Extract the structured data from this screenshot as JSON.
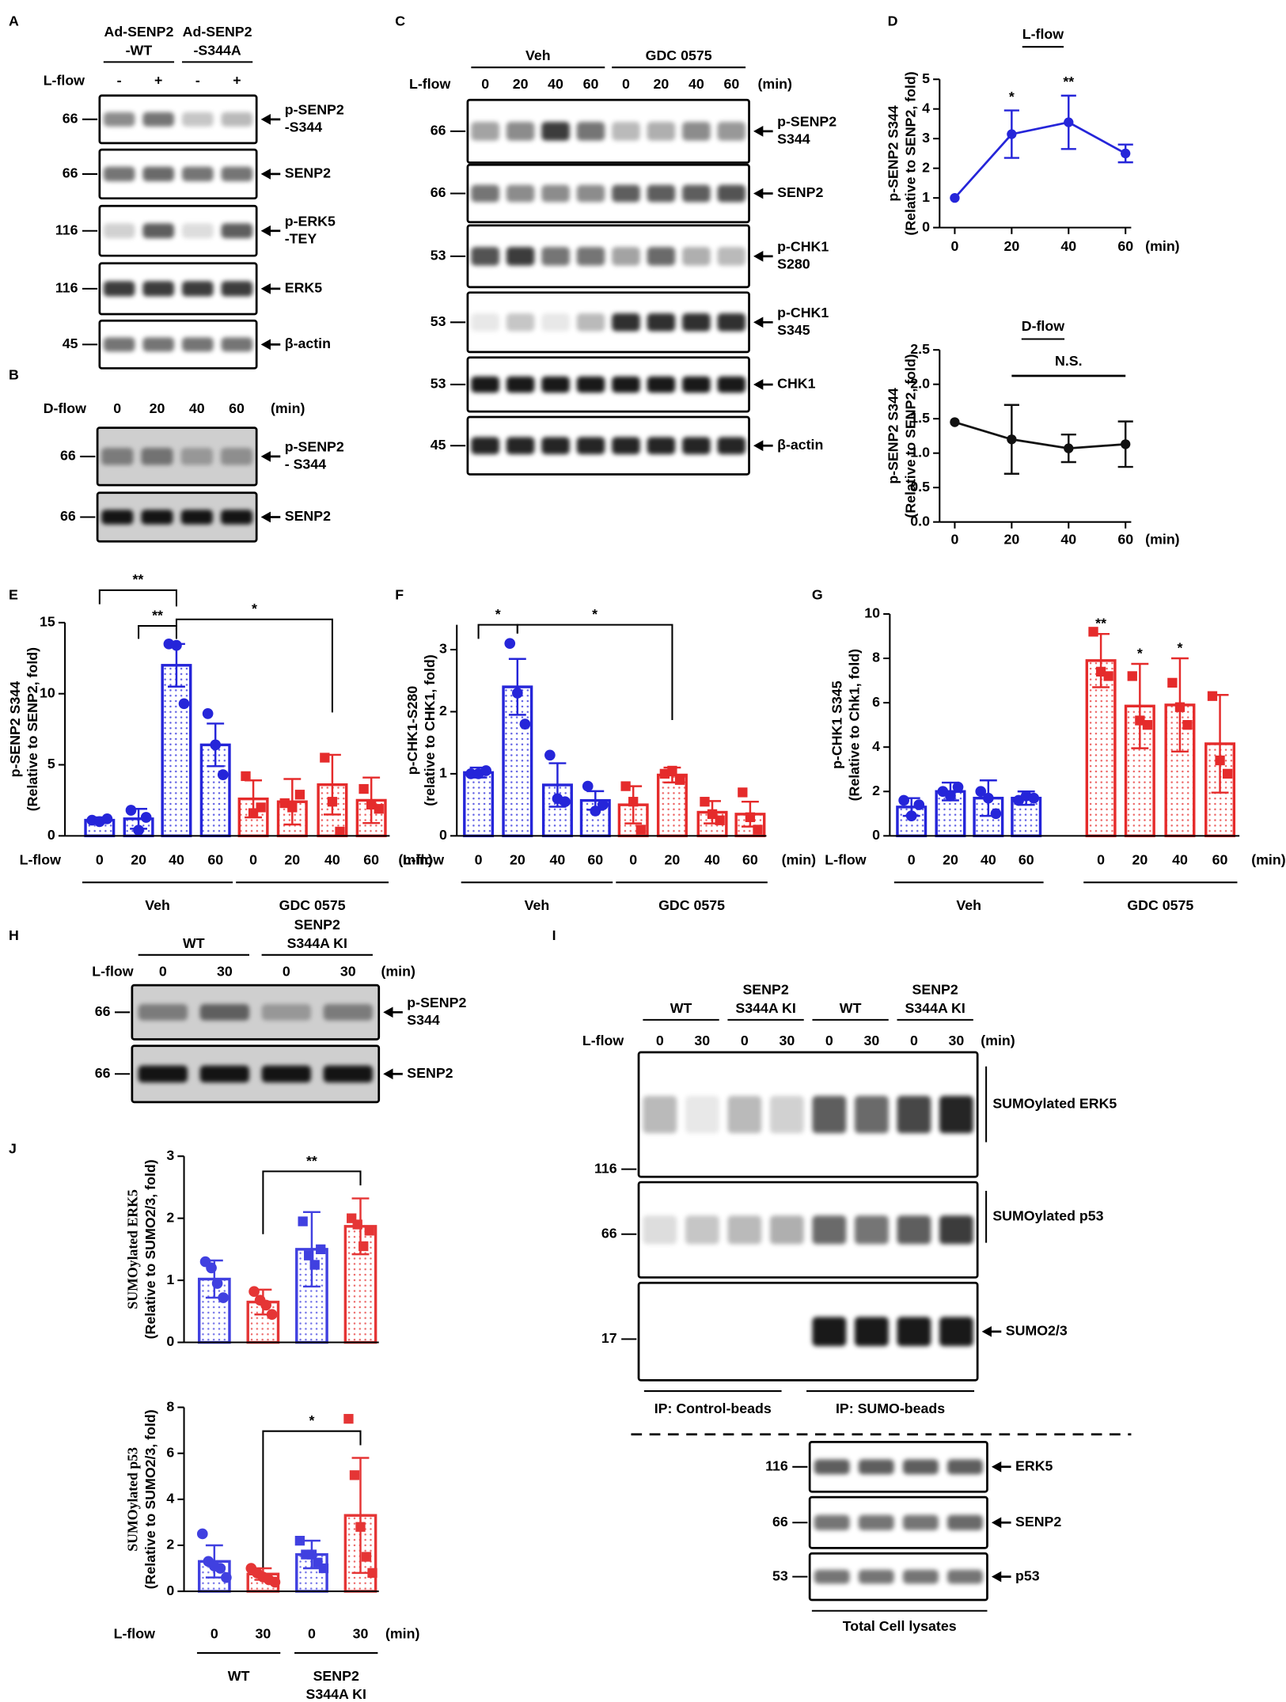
{
  "panel_labels": [
    "A",
    "B",
    "C",
    "D",
    "E",
    "F",
    "G",
    "H",
    "I",
    "J"
  ],
  "blots": {
    "A": {
      "groups": [
        [
          "Ad-SENP2",
          "-WT"
        ],
        [
          "Ad-SENP2",
          "-S344A"
        ]
      ],
      "condition": "L-flow",
      "lanes": [
        "-",
        "+",
        "-",
        "+"
      ],
      "rows": [
        {
          "mw": 66,
          "label": [
            "p-SENP2",
            "-S344"
          ]
        },
        {
          "mw": 66,
          "label": [
            "SENP2"
          ]
        },
        {
          "mw": 116,
          "label": [
            "p-ERK5",
            "-TEY"
          ]
        },
        {
          "mw": 116,
          "label": [
            "ERK5"
          ]
        },
        {
          "mw": 45,
          "label": [
            "β-actin"
          ]
        }
      ]
    },
    "B": {
      "condition": "D-flow",
      "lanes": [
        0,
        20,
        40,
        60
      ],
      "unit": "(min)",
      "rows": [
        {
          "mw": 66,
          "label": [
            "p-SENP2",
            "- S344"
          ]
        },
        {
          "mw": 66,
          "label": [
            "SENP2"
          ]
        }
      ]
    },
    "C": {
      "groups": [
        [
          "Veh"
        ],
        [
          "GDC 0575"
        ]
      ],
      "condition": "L-flow",
      "lanes": [
        0,
        20,
        40,
        60,
        0,
        20,
        40,
        60
      ],
      "unit": "(min)",
      "rows": [
        {
          "mw": 66,
          "label": [
            "p-SENP2",
            "S344"
          ]
        },
        {
          "mw": 66,
          "label": [
            "SENP2"
          ]
        },
        {
          "mw": 53,
          "label": [
            "p-CHK1",
            "S280"
          ]
        },
        {
          "mw": 53,
          "label": [
            "p-CHK1",
            "S345"
          ]
        },
        {
          "mw": 53,
          "label": [
            "CHK1"
          ]
        },
        {
          "mw": 45,
          "label": [
            "β-actin"
          ]
        }
      ]
    },
    "H": {
      "groups": [
        [
          "WT"
        ],
        [
          "SENP2",
          "S344A KI"
        ]
      ],
      "condition": "L-flow",
      "lanes": [
        0,
        30,
        0,
        30
      ],
      "unit": "(min)",
      "rows": [
        {
          "mw": 66,
          "label": [
            "p-SENP2",
            "S344"
          ]
        },
        {
          "mw": 66,
          "label": [
            "SENP2"
          ]
        }
      ]
    },
    "I": {
      "groups": [
        [
          "WT"
        ],
        [
          "SENP2",
          "S344A KI"
        ],
        [
          "WT"
        ],
        [
          "SENP2",
          "S344A KI"
        ]
      ],
      "condition": "L-flow",
      "lanes": [
        0,
        30,
        0,
        30,
        0,
        30,
        0,
        30
      ],
      "unit": "(min)",
      "rows": [
        {
          "mw": 116,
          "label": [
            "SUMOylated ERK5"
          ]
        },
        {
          "mw": 66,
          "label": [
            "SUMOylated p53"
          ]
        },
        {
          "mw": 17,
          "label": [
            "SUMO2/3"
          ]
        }
      ],
      "ip_labels": [
        "IP: Control-beads",
        "IP: SUMO-beads"
      ],
      "lysate_rows": [
        {
          "mw": 116,
          "label": [
            "ERK5"
          ]
        },
        {
          "mw": 66,
          "label": [
            "SENP2"
          ]
        },
        {
          "mw": 53,
          "label": [
            "p53"
          ]
        }
      ],
      "lysate_label": "Total Cell lysates"
    }
  },
  "chart_data": [
    {
      "type": "line",
      "title": "L-flow",
      "ylabel": [
        "p-SENP2 S344",
        "(Relative to SENP2, fold)"
      ],
      "x": [
        0,
        20,
        40,
        60
      ],
      "xlim": [
        0,
        62
      ],
      "xticks": [
        0,
        20,
        40,
        60
      ],
      "xunit": "(min)",
      "ylim": [
        0,
        5
      ],
      "yticks": [
        0,
        1,
        2,
        3,
        4,
        5
      ],
      "series": [
        {
          "color": "#2525d9",
          "values": [
            1,
            3.15,
            3.55,
            2.5
          ],
          "errors": [
            null,
            0.8,
            0.9,
            0.3
          ]
        }
      ],
      "annotations": [
        "*",
        "**"
      ]
    },
    {
      "type": "line",
      "title": "D-flow",
      "ylabel": [
        "p-SENP2 S344",
        "(Relative to SENP2, fold)"
      ],
      "x": [
        0,
        20,
        40,
        60
      ],
      "xlim": [
        0,
        62
      ],
      "xticks": [
        0,
        20,
        40,
        60
      ],
      "xunit": "(min)",
      "ylim": [
        0,
        2.5
      ],
      "yticks": [
        {
          "value": 0,
          "label": "0.0"
        },
        0.5,
        {
          "value": 1,
          "label": "1.0"
        },
        1.5,
        {
          "value": 2,
          "label": "2.0"
        },
        2.5
      ],
      "series": [
        {
          "color": "#111111",
          "values": [
            1.45,
            1.2,
            1.07,
            1.13
          ],
          "errors": [
            null,
            0.5,
            0.2,
            0.33
          ]
        }
      ],
      "annotations": [
        "N.S."
      ]
    },
    {
      "type": "bar",
      "ylabel": [
        "p-SENP2 S344",
        "(Relative to  SENP2, fold)"
      ],
      "xlabel": "L-flow",
      "xunit": "(min)",
      "categories": [
        "0",
        "20",
        "40",
        "60"
      ],
      "ylim": [
        0,
        15
      ],
      "yticks": [
        0,
        5,
        10,
        15
      ],
      "series": [
        {
          "name": [
            "Veh"
          ],
          "color": "#2525d9",
          "marker": "circle",
          "values": [
            1.1,
            1.2,
            12,
            6.4
          ],
          "errors": [
            0.2,
            0.7,
            1.5,
            1.5
          ],
          "points": [
            [
              1.1,
              1.0,
              1.2
            ],
            [
              1.8,
              0.4,
              1.3
            ],
            [
              13.5,
              13.4,
              9.3
            ],
            [
              8.6,
              6.4,
              4.3
            ]
          ]
        },
        {
          "name": [
            "GDC 0575"
          ],
          "color": "#e52b2b",
          "marker": "square",
          "values": [
            2.6,
            2.4,
            3.6,
            2.5
          ],
          "errors": [
            1.3,
            1.6,
            2.1,
            1.6
          ],
          "points": [
            [
              4.2,
              1.6,
              2.0
            ],
            [
              2.3,
              2.0,
              2.9
            ],
            [
              5.5,
              2.4,
              0.3
            ],
            [
              3.3,
              2.2,
              1.9
            ]
          ]
        }
      ],
      "annotations": [
        "**",
        "**",
        "*"
      ]
    },
    {
      "type": "bar",
      "ylabel": [
        "p-CHK1-S280",
        "(relative to CHK1, fold)"
      ],
      "xlabel": "L-flow",
      "xunit": "(min)",
      "categories": [
        "0",
        "20",
        "40",
        "60"
      ],
      "ylim": [
        0,
        3.4
      ],
      "yticks": [
        0,
        1,
        2,
        3
      ],
      "series": [
        {
          "name": [
            "Veh"
          ],
          "color": "#2525d9",
          "marker": "circle",
          "values": [
            1.02,
            2.4,
            0.82,
            0.57
          ],
          "errors": [
            0.08,
            0.45,
            0.35,
            0.15
          ],
          "points": [
            [
              1.0,
              1.0,
              1.05
            ],
            [
              3.1,
              2.3,
              1.8
            ],
            [
              1.3,
              0.6,
              0.55
            ],
            [
              0.8,
              0.4,
              0.5
            ]
          ]
        },
        {
          "name": [
            "GDC 0575"
          ],
          "color": "#e52b2b",
          "marker": "square",
          "values": [
            0.5,
            0.98,
            0.38,
            0.35
          ],
          "errors": [
            0.3,
            0.12,
            0.18,
            0.2
          ],
          "points": [
            [
              0.8,
              0.55,
              0.1
            ],
            [
              1.0,
              1.05,
              0.9
            ],
            [
              0.55,
              0.35,
              0.25
            ],
            [
              0.7,
              0.3,
              0.1
            ]
          ]
        }
      ],
      "annotations": [
        "*",
        "*"
      ]
    },
    {
      "type": "bar",
      "ylabel": [
        "p-CHK1 S345",
        "(Relative to Chk1, fold)"
      ],
      "xlabel": "L-flow",
      "xunit": "(min)",
      "categories": [
        "0",
        "20",
        "40",
        "60"
      ],
      "ylim": [
        0,
        10
      ],
      "yticks": [
        0,
        2,
        4,
        6,
        8,
        10
      ],
      "series": [
        {
          "name": [
            "Veh"
          ],
          "color": "#2525d9",
          "marker": "circle",
          "values": [
            1.3,
            2.0,
            1.7,
            1.7
          ],
          "errors": [
            0.4,
            0.4,
            0.8,
            0.3
          ],
          "points": [
            [
              1.6,
              0.9,
              1.4
            ],
            [
              2.0,
              1.8,
              2.2
            ],
            [
              2.0,
              1.7,
              1.0
            ],
            [
              1.6,
              1.8,
              1.7
            ]
          ]
        },
        {
          "name": [
            "GDC 0575"
          ],
          "color": "#e52b2b",
          "marker": "square",
          "values": [
            7.9,
            5.85,
            5.9,
            4.15
          ],
          "errors": [
            1.2,
            1.9,
            2.1,
            2.2
          ],
          "points": [
            [
              9.2,
              7.4,
              7.2
            ],
            [
              7.2,
              5.2,
              5.0
            ],
            [
              6.9,
              5.8,
              5.0
            ],
            [
              6.3,
              3.4,
              2.8
            ]
          ]
        }
      ],
      "annotations": [
        "**",
        "*",
        "*"
      ]
    },
    {
      "type": "bar",
      "ylabel": [
        "SUMOylated ERK5",
        "(Relative to SUMO2/3, fold)"
      ],
      "ylim": [
        0,
        3
      ],
      "yticks": [
        0,
        1,
        2,
        3
      ],
      "series": [
        {
          "colors": [
            "#4040e0",
            "#e53535"
          ],
          "marker": "circle",
          "values": [
            1.02,
            0.65
          ],
          "errors": [
            0.3,
            0.2
          ],
          "points": [
            [
              1.3,
              1.2,
              0.95,
              0.72
            ],
            [
              0.82,
              0.68,
              0.6,
              0.45
            ]
          ]
        },
        {
          "colors": [
            "#4040e0",
            "#e53535"
          ],
          "marker": "square",
          "values": [
            1.5,
            1.87
          ],
          "errors": [
            0.6,
            0.45
          ],
          "points": [
            [
              1.95,
              1.4,
              1.25,
              1.5
            ],
            [
              2.0,
              1.9,
              1.55,
              1.8
            ]
          ]
        }
      ],
      "annotations": [
        "**"
      ]
    },
    {
      "type": "bar",
      "ylabel": [
        "SUMOylated p53",
        "(Relative to SUMO2/3, fold)"
      ],
      "xlabel": "L-flow",
      "xunit": "(min)",
      "categories": [
        "0",
        "30"
      ],
      "ylim": [
        0,
        8
      ],
      "yticks": [
        0,
        2,
        4,
        6,
        8
      ],
      "series": [
        {
          "name": [
            "WT"
          ],
          "colors": [
            "#4040e0",
            "#e53535"
          ],
          "marker": "circle",
          "values": [
            1.3,
            0.75
          ],
          "errors": [
            0.7,
            0.25
          ],
          "points": [
            [
              2.5,
              1.3,
              1.1,
              1.0,
              0.6
            ],
            [
              1.0,
              0.8,
              0.62,
              0.5,
              0.4
            ]
          ]
        },
        {
          "name": [
            "SENP2",
            "S344A KI"
          ],
          "colors": [
            "#4040e0",
            "#e53535"
          ],
          "marker": "square",
          "values": [
            1.6,
            3.3
          ],
          "errors": [
            0.6,
            2.5
          ],
          "points": [
            [
              2.2,
              1.6,
              1.6,
              1.25,
              1.0
            ],
            [
              7.5,
              5.05,
              2.8,
              1.5,
              0.8
            ]
          ]
        }
      ],
      "annotations": [
        "*"
      ]
    }
  ]
}
